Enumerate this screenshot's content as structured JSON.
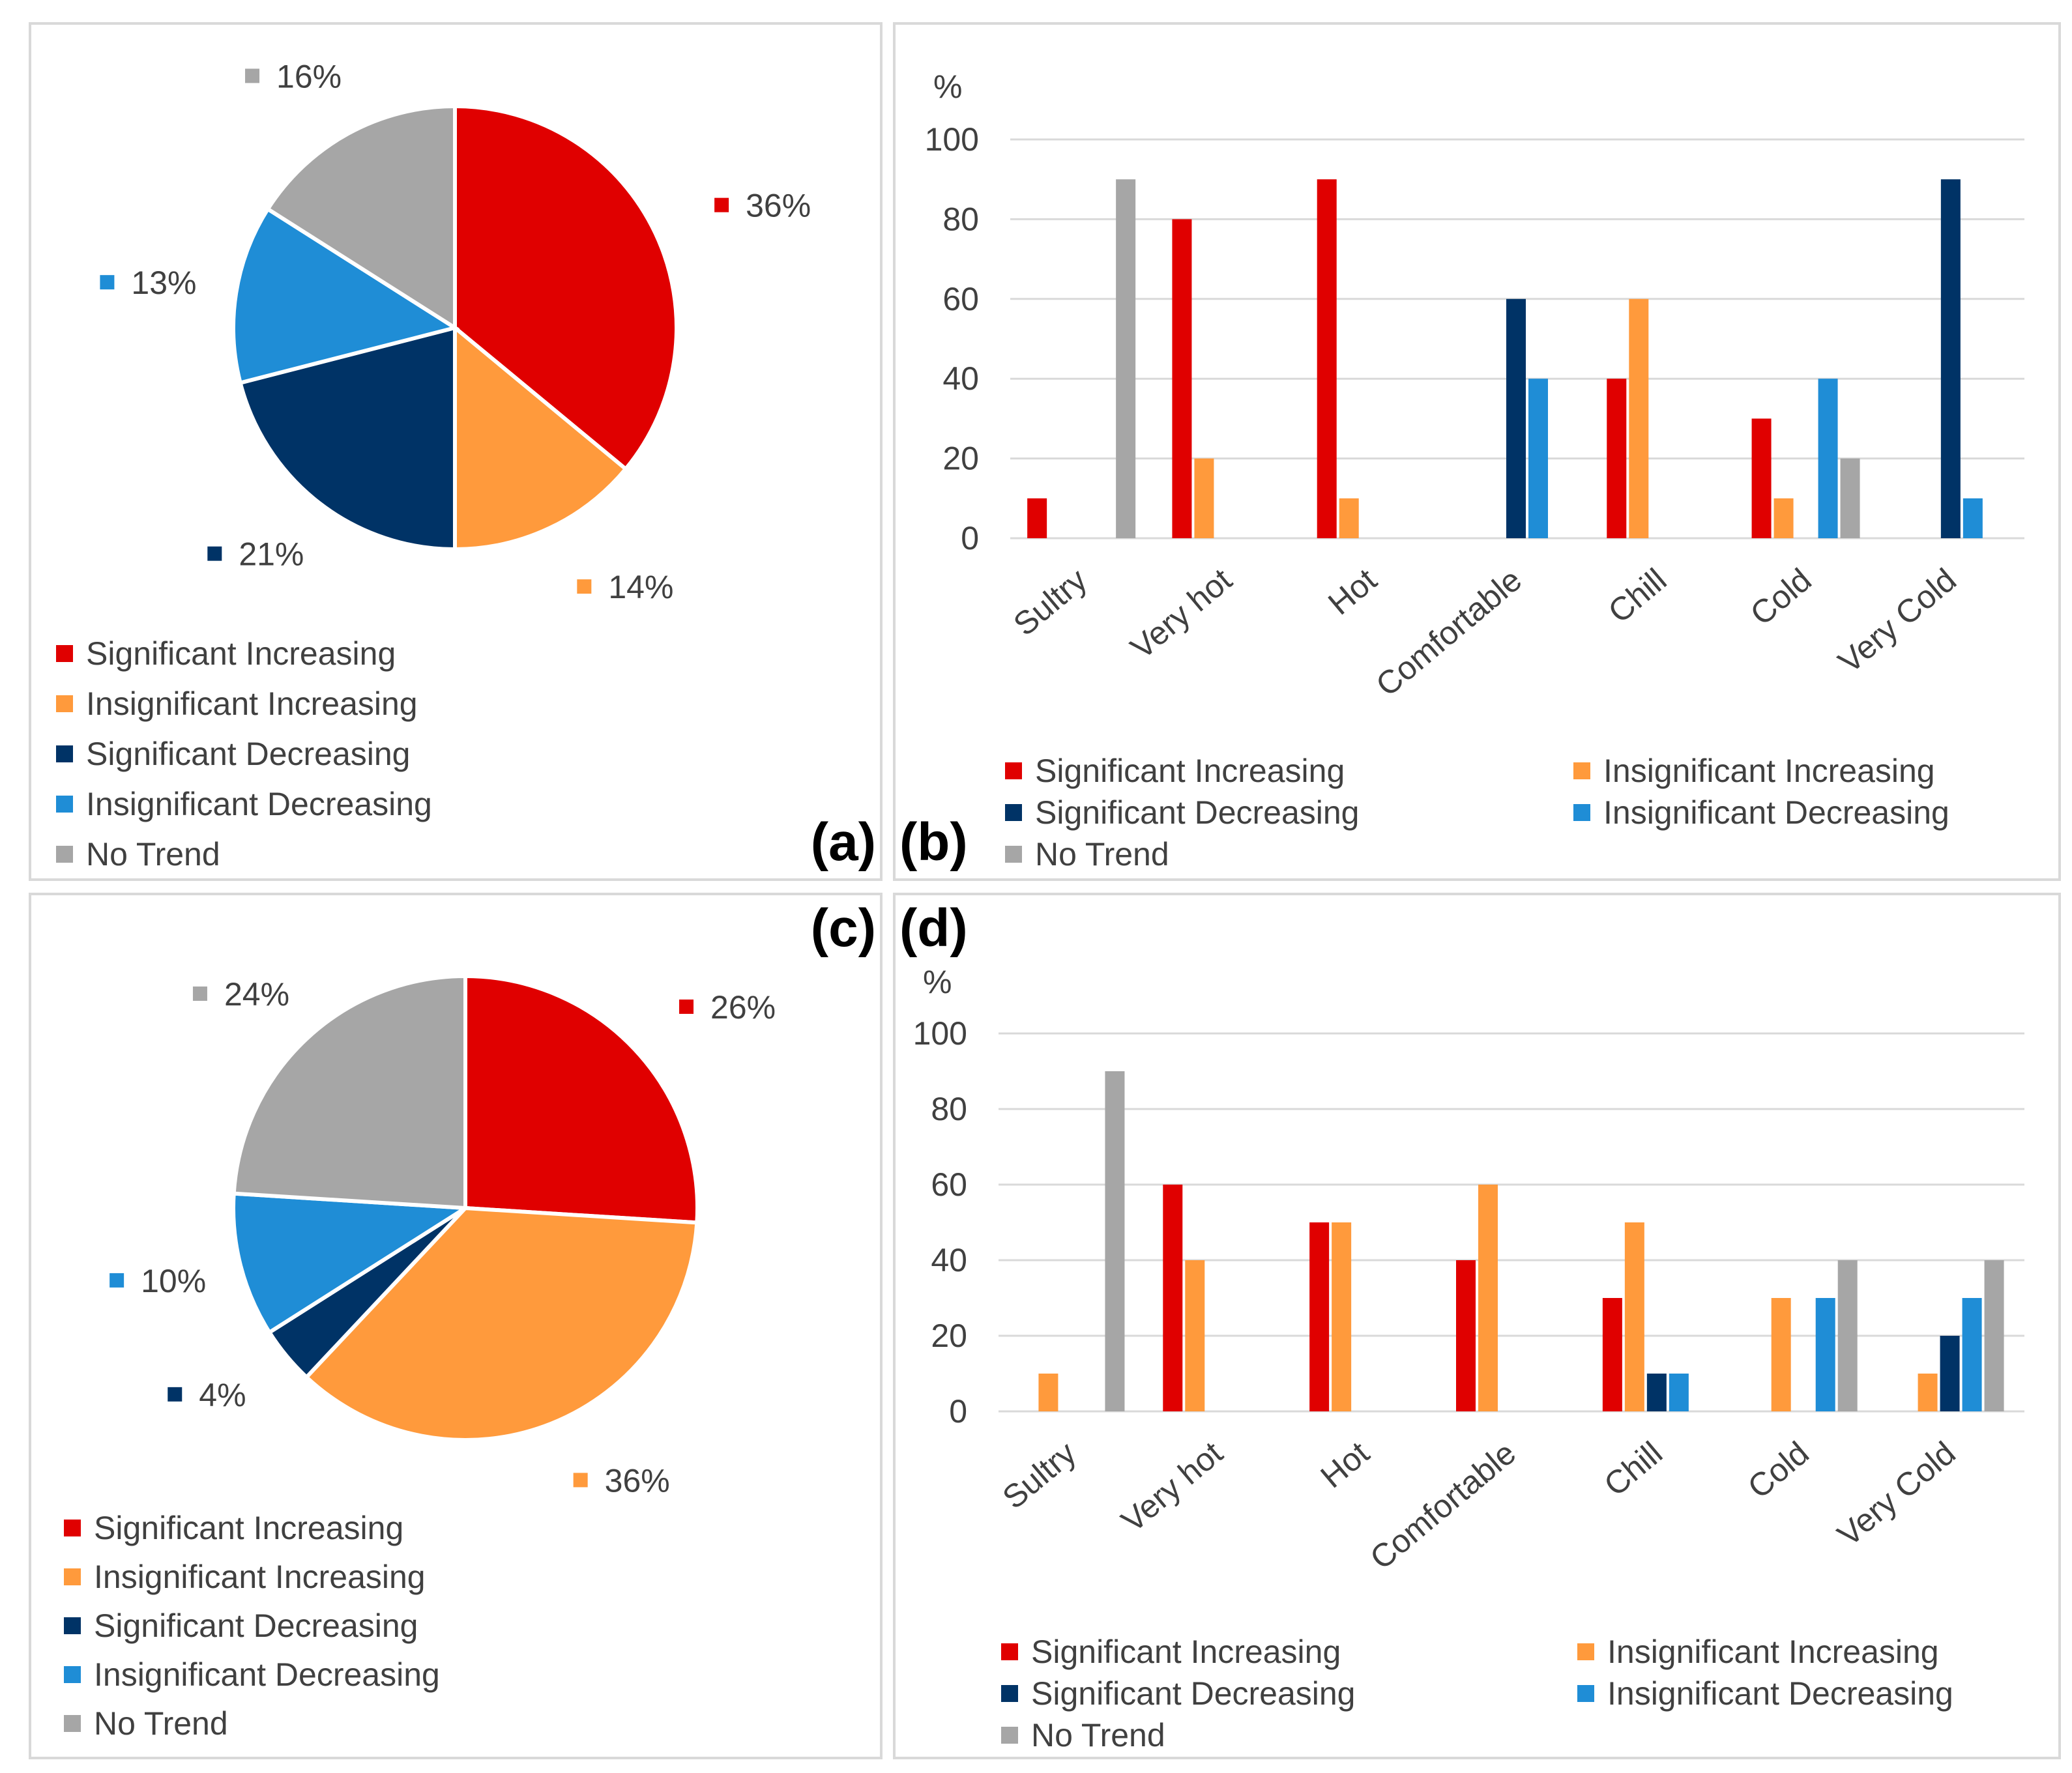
{
  "chart_data": [
    {
      "panel": "(a)",
      "type": "pie",
      "slices": [
        {
          "name": "Significant Increasing",
          "value": 36,
          "label": "36%",
          "color": "#e00000"
        },
        {
          "name": "Insignificant Increasing",
          "value": 14,
          "label": "14%",
          "color": "#ff9a3c"
        },
        {
          "name": "Significant Decreasing",
          "value": 21,
          "label": "21%",
          "color": "#003366"
        },
        {
          "name": "Insignificant Decreasing",
          "value": 13,
          "label": "13%",
          "color": "#1f8dd6"
        },
        {
          "name": "No Trend",
          "value": 16,
          "label": "16%",
          "color": "#a6a6a6"
        }
      ],
      "legend": [
        "Significant Increasing",
        "Insignificant Increasing",
        "Significant Decreasing",
        "Insignificant Decreasing",
        "No Trend"
      ]
    },
    {
      "panel": "(b)",
      "type": "bar",
      "ylabel": "%",
      "ylim": [
        0,
        100
      ],
      "yticks": [
        "0",
        "20",
        "40",
        "60",
        "80",
        "100"
      ],
      "categories": [
        "Sultry",
        "Very hot",
        "Hot",
        "Comfortable",
        "Chill",
        "Cold",
        "Very Cold"
      ],
      "series": [
        {
          "name": "Significant Increasing",
          "color": "#e00000",
          "values": [
            10,
            80,
            90,
            0,
            40,
            30,
            0
          ]
        },
        {
          "name": "Insignificant Increasing",
          "color": "#ff9a3c",
          "values": [
            0,
            20,
            10,
            0,
            60,
            10,
            0
          ]
        },
        {
          "name": "Significant Decreasing",
          "color": "#003366",
          "values": [
            0,
            0,
            0,
            60,
            0,
            0,
            90
          ]
        },
        {
          "name": "Insignificant Decreasing",
          "color": "#1f8dd6",
          "values": [
            0,
            0,
            0,
            40,
            0,
            40,
            10
          ]
        },
        {
          "name": "No Trend",
          "color": "#a6a6a6",
          "values": [
            90,
            0,
            0,
            0,
            0,
            20,
            0
          ]
        }
      ],
      "legend": [
        "Significant Increasing",
        "Insignificant Increasing",
        "Significant Decreasing",
        "Insignificant Decreasing",
        "No Trend"
      ]
    },
    {
      "panel": "(c)",
      "type": "pie",
      "slices": [
        {
          "name": "Significant Increasing",
          "value": 26,
          "label": "26%",
          "color": "#e00000"
        },
        {
          "name": "Insignificant Increasing",
          "value": 36,
          "label": "36%",
          "color": "#ff9a3c"
        },
        {
          "name": "Significant Decreasing",
          "value": 4,
          "label": "4%",
          "color": "#003366"
        },
        {
          "name": "Insignificant Decreasing",
          "value": 10,
          "label": "10%",
          "color": "#1f8dd6"
        },
        {
          "name": "No Trend",
          "value": 24,
          "label": "24%",
          "color": "#a6a6a6"
        }
      ],
      "legend": [
        "Significant Increasing",
        "Insignificant Increasing",
        "Significant Decreasing",
        "Insignificant Decreasing",
        "No Trend"
      ]
    },
    {
      "panel": "(d)",
      "type": "bar",
      "ylabel": "%",
      "ylim": [
        0,
        100
      ],
      "yticks": [
        "0",
        "20",
        "40",
        "60",
        "80",
        "100"
      ],
      "categories": [
        "Sultry",
        "Very hot",
        "Hot",
        "Comfortable",
        "Chill",
        "Cold",
        "Very Cold"
      ],
      "series": [
        {
          "name": "Significant Increasing",
          "color": "#e00000",
          "values": [
            0,
            60,
            50,
            40,
            30,
            0,
            0
          ]
        },
        {
          "name": "Insignificant Increasing",
          "color": "#ff9a3c",
          "values": [
            10,
            40,
            50,
            60,
            50,
            30,
            10
          ]
        },
        {
          "name": "Significant Decreasing",
          "color": "#003366",
          "values": [
            0,
            0,
            0,
            0,
            10,
            0,
            20
          ]
        },
        {
          "name": "Insignificant Decreasing",
          "color": "#1f8dd6",
          "values": [
            0,
            0,
            0,
            0,
            10,
            30,
            30
          ]
        },
        {
          "name": "No Trend",
          "color": "#a6a6a6",
          "values": [
            90,
            0,
            0,
            0,
            0,
            40,
            40
          ]
        }
      ],
      "legend": [
        "Significant Increasing",
        "Insignificant Increasing",
        "Significant Decreasing",
        "Insignificant Decreasing",
        "No Trend"
      ]
    }
  ]
}
